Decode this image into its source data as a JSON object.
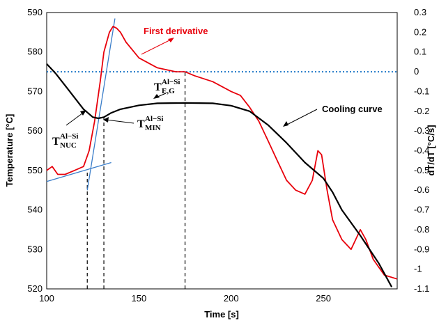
{
  "chart_data": {
    "type": "line",
    "title": "",
    "xlabel": "Time [s]",
    "ylabel": "Temperature [°C]",
    "ylabel_right": "dT/dT [°C/s]",
    "xlim": [
      100,
      290
    ],
    "ylim": [
      520,
      590
    ],
    "ylim_right": [
      -1.1,
      0.3
    ],
    "x_ticks": [
      "100",
      "150",
      "200",
      "250"
    ],
    "y_ticks": [
      "520",
      "530",
      "540",
      "550",
      "560",
      "570",
      "580",
      "590"
    ],
    "y_ticks_right": [
      "-1.1",
      "-1",
      "-0.9",
      "-0.8",
      "-0.7",
      "-0.6",
      "-0.5",
      "-0.4",
      "-0.3",
      "-0.2",
      "-0.1",
      "0",
      "0.1",
      "0.2",
      "0.3"
    ],
    "grid": false,
    "series": [
      {
        "name": "Cooling curve",
        "axis": "left",
        "color": "#000000",
        "points": [
          [
            100,
            577
          ],
          [
            105,
            574.5
          ],
          [
            110,
            571.5
          ],
          [
            115,
            568.5
          ],
          [
            120,
            565.5
          ],
          [
            125,
            563.5
          ],
          [
            128,
            563.2
          ],
          [
            131,
            563.5
          ],
          [
            135,
            564.6
          ],
          [
            140,
            565.5
          ],
          [
            150,
            566.5
          ],
          [
            160,
            567
          ],
          [
            175,
            567.1
          ],
          [
            190,
            567
          ],
          [
            200,
            566.4
          ],
          [
            210,
            565
          ],
          [
            220,
            561.5
          ],
          [
            230,
            557
          ],
          [
            240,
            552
          ],
          [
            250,
            548
          ],
          [
            255,
            544.5
          ],
          [
            260,
            540
          ],
          [
            270,
            533.5
          ],
          [
            280,
            526.5
          ],
          [
            287,
            520.5
          ]
        ]
      },
      {
        "name": "First derivative",
        "axis": "right",
        "color": "#e8000b",
        "points": [
          [
            100,
            -0.5
          ],
          [
            103,
            -0.48
          ],
          [
            106,
            -0.52
          ],
          [
            110,
            -0.52
          ],
          [
            115,
            -0.5
          ],
          [
            120,
            -0.48
          ],
          [
            123,
            -0.4
          ],
          [
            126,
            -0.25
          ],
          [
            129,
            -0.05
          ],
          [
            131,
            0.1
          ],
          [
            134,
            0.2
          ],
          [
            136,
            0.23
          ],
          [
            138,
            0.22
          ],
          [
            140,
            0.2
          ],
          [
            143,
            0.15
          ],
          [
            150,
            0.07
          ],
          [
            160,
            0.02
          ],
          [
            170,
            0.0
          ],
          [
            175,
            0.0
          ],
          [
            180,
            -0.02
          ],
          [
            190,
            -0.05
          ],
          [
            200,
            -0.1
          ],
          [
            205,
            -0.12
          ],
          [
            210,
            -0.18
          ],
          [
            215,
            -0.25
          ],
          [
            220,
            -0.35
          ],
          [
            225,
            -0.45
          ],
          [
            230,
            -0.55
          ],
          [
            235,
            -0.6
          ],
          [
            240,
            -0.62
          ],
          [
            244,
            -0.55
          ],
          [
            247,
            -0.4
          ],
          [
            249,
            -0.42
          ],
          [
            252,
            -0.6
          ],
          [
            255,
            -0.75
          ],
          [
            260,
            -0.85
          ],
          [
            265,
            -0.9
          ],
          [
            270,
            -0.8
          ],
          [
            273,
            -0.85
          ],
          [
            277,
            -0.95
          ],
          [
            283,
            -1.03
          ],
          [
            290,
            -1.05
          ]
        ]
      }
    ],
    "reference_line": {
      "axis": "right",
      "value": 0,
      "color": "#1f78c8",
      "style": "dotted"
    },
    "tangent_lines": [
      {
        "color": "#3a7dc9",
        "points": [
          [
            100,
            547.2
          ],
          [
            135,
            552
          ]
        ]
      },
      {
        "color": "#3a7dc9",
        "points": [
          [
            122,
            545
          ],
          [
            137,
            588.5
          ]
        ]
      }
    ],
    "vertical_markers": [
      {
        "x": 122,
        "from": 520,
        "to": 550
      },
      {
        "x": 131,
        "from": 520,
        "to": 563.5
      },
      {
        "x": 175,
        "from": 520,
        "to": 575
      }
    ],
    "annotations": {
      "first_derivative": "First derivative",
      "cooling_curve": "Cooling curve",
      "t_nuc": {
        "base": "T",
        "sup": "Al−Si",
        "sub": "NUC"
      },
      "t_min": {
        "base": "T",
        "sup": "Al−Si",
        "sub": "MIN"
      },
      "t_eg": {
        "base": "T",
        "sup": "Al−Si",
        "sub": "E,G"
      }
    }
  }
}
